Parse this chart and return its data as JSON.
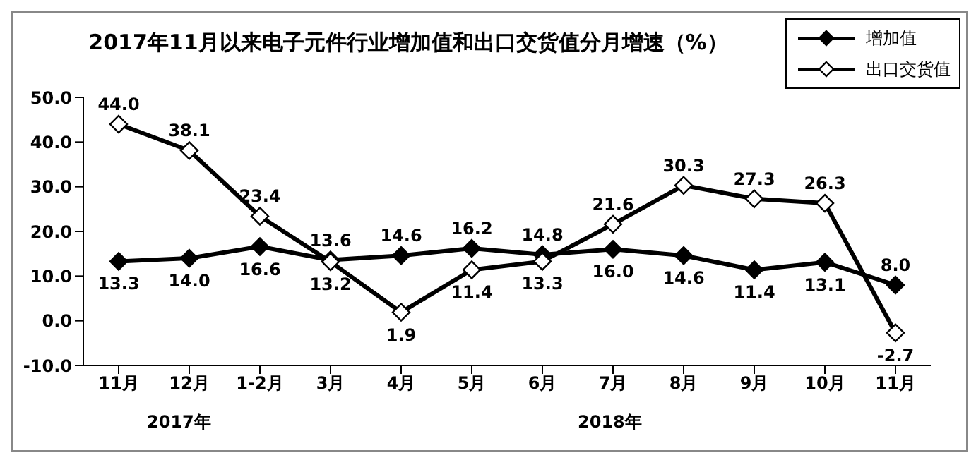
{
  "chart_data": {
    "type": "line",
    "title": "2017年11月以来电子元件行业增加值和出口交货值分月增速（%）",
    "categories": [
      "11月",
      "12月",
      "1-2月",
      "3月",
      "4月",
      "5月",
      "6月",
      "7月",
      "8月",
      "9月",
      "10月",
      "11月"
    ],
    "series": [
      {
        "name": "增加值",
        "color": "#000000",
        "values": [
          13.3,
          14.0,
          16.6,
          13.6,
          14.6,
          16.2,
          14.8,
          16.0,
          14.6,
          11.4,
          13.1,
          8.0
        ],
        "value_labels": [
          "13.3",
          "14.0",
          "16.6",
          "13.6",
          "14.6",
          "16.2",
          "14.8",
          "16.0",
          "14.6",
          "11.4",
          "13.1",
          "8.0"
        ]
      },
      {
        "name": "出口交货值",
        "color": "#000000",
        "values": [
          44.0,
          38.1,
          23.4,
          13.2,
          1.9,
          11.4,
          13.3,
          21.6,
          30.3,
          27.3,
          26.3,
          -2.7
        ],
        "value_labels": [
          "44.0",
          "38.1",
          "23.4",
          "13.2",
          "1.9",
          "11.4",
          "13.3",
          "21.6",
          "30.3",
          "27.3",
          "26.3",
          "-2.7"
        ]
      }
    ],
    "ylim": [
      -10,
      50
    ],
    "yticks": [
      {
        "value": -10,
        "label": "-10.0"
      },
      {
        "value": 0,
        "label": "0.0"
      },
      {
        "value": 10,
        "label": "10.0"
      },
      {
        "value": 20,
        "label": "20.0"
      },
      {
        "value": 30,
        "label": "30.0"
      },
      {
        "value": 40,
        "label": "40.0"
      },
      {
        "value": 50,
        "label": "50.0"
      }
    ],
    "marker": "diamond",
    "line_style": "solid",
    "legend": "top right",
    "annotations": [
      "2017年",
      "2018年"
    ]
  }
}
